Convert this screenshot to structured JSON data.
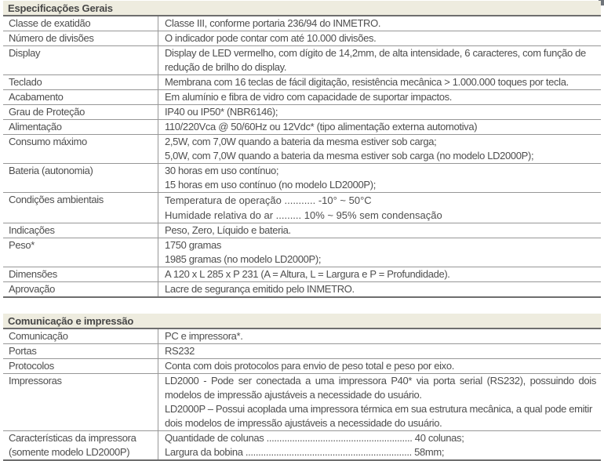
{
  "artifact": {
    "name": "corner-mark"
  },
  "tables": [
    {
      "title": "Especificações Gerais",
      "rows": [
        {
          "label": [
            "Classe de exatidão"
          ],
          "lines": [
            "Classe III, conforme portaria 236/94 do INMETRO."
          ]
        },
        {
          "label": [
            "Número de divisões"
          ],
          "lines": [
            "O indicador pode contar com até 10.000 divisões."
          ]
        },
        {
          "label": [
            "Display"
          ],
          "lines": [
            "Display de LED vermelho, com dígito de 14,2mm, de alta intensidade, 6 caracteres, com função de",
            "redução de brilho do display."
          ]
        },
        {
          "label": [
            "Teclado"
          ],
          "lines": [
            "Membrana com 16 teclas de fácil digitação, resistência mecânica > 1.000.000 toques por tecla."
          ]
        },
        {
          "label": [
            "Acabamento"
          ],
          "lines": [
            "Em alumínio e fibra de vidro com capacidade de suportar impactos."
          ]
        },
        {
          "label": [
            "Grau de Proteção"
          ],
          "lines": [
            "IP40 ou IP50* (NBR6146);"
          ]
        },
        {
          "label": [
            "Alimentação"
          ],
          "lines": [
            "110/220Vca @ 50/60Hz ou 12Vdc* (tipo alimentação externa automotiva)"
          ]
        },
        {
          "label": [
            "Consumo máximo"
          ],
          "lines": [
            "2,5W, com 7,0W quando a bateria da mesma estiver sob carga;",
            "5,0W, com 7,0W quando a bateria da mesma estiver sob carga (no modelo LD2000P);"
          ]
        },
        {
          "label": [
            "Bateria (autonomia)"
          ],
          "lines": [
            "30 horas em uso contínuo;",
            "15 horas em uso contínuo (no modelo LD2000P);"
          ]
        },
        {
          "label": [
            "Condições ambientais"
          ],
          "lines": [
            "Temperatura de operação ........... -10° ~ 50°C",
            "Humidade relativa do ar ......... 10% ~ 95% sem condensação"
          ]
        },
        {
          "label": [
            "Indicações"
          ],
          "lines": [
            "Peso, Zero, Líquido e bateria."
          ]
        },
        {
          "label": [
            "Peso*"
          ],
          "lines": [
            "1750 gramas",
            "1985 gramas (no modelo LD2000P);"
          ]
        },
        {
          "label": [
            "Dimensões"
          ],
          "lines": [
            "A 120 x L 285 x P 231 (A = Altura, L = Largura e P = Profundidade)."
          ]
        },
        {
          "label": [
            "Aprovação"
          ],
          "lines": [
            "Lacre de segurança emitido pelo INMETRO."
          ]
        }
      ]
    },
    {
      "title": "Comunicação e impressão",
      "rows": [
        {
          "label": [
            "Comunicação"
          ],
          "lines": [
            "PC e impressora*."
          ]
        },
        {
          "label": [
            "Portas"
          ],
          "lines": [
            "RS232"
          ]
        },
        {
          "label": [
            "Protocolos"
          ],
          "lines": [
            "Conta com dois protocolos para envio de peso total e peso por eixo."
          ]
        },
        {
          "label": [
            "Impressoras"
          ],
          "lines": [
            "LD2000 - Pode ser conectada a uma impressora P40* via porta serial (RS232), possuindo dois",
            "modelos de impressão ajustáveis a necessidade do usuário.",
            "LD2000P – Possui acoplada uma impressora térmica em sua estrutura mecânica, a qual pode emitir",
            "dois modelos de impressão ajustáveis a necessidade do usuário."
          ]
        },
        {
          "label": [
            "Características da impressora",
            "(somente modelo LD2000P)"
          ],
          "lines": [
            "Quantidade de colunas ......................................................... 40 colunas;",
            "Largura da bobina ................................................................. 58mm;"
          ]
        }
      ]
    }
  ]
}
